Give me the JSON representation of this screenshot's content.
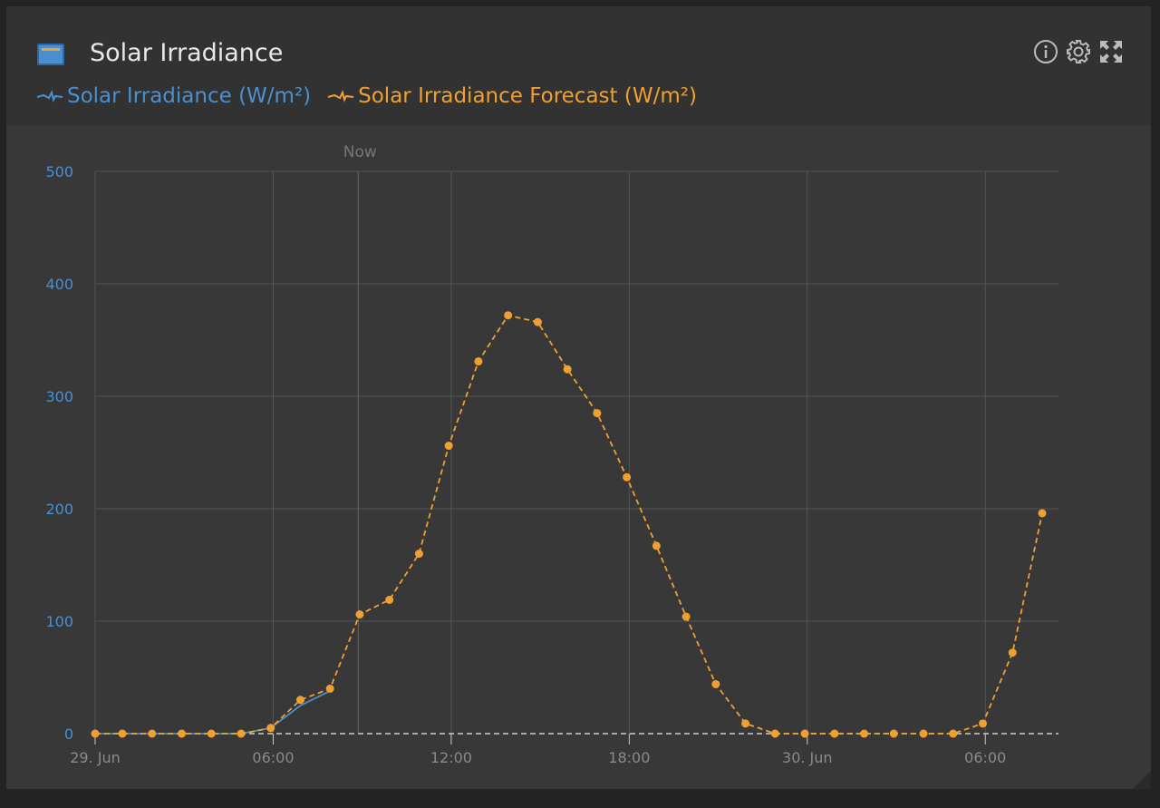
{
  "header": {
    "title": "Solar Irradiance",
    "icon": "solar-panel-icon",
    "tools": [
      "info-icon",
      "gear-icon",
      "expand-icon"
    ]
  },
  "legend": [
    {
      "label": "Solar Irradiance (W/m²)",
      "color": "#4a90d0"
    },
    {
      "label": "Solar Irradiance Forecast (W/m²)",
      "color": "#f0a030"
    }
  ],
  "chart_data": {
    "type": "line",
    "title": "",
    "ylim": [
      0,
      500
    ],
    "yticks": [
      "0",
      "100",
      "200",
      "300",
      "400",
      "500"
    ],
    "xrange": [
      "29 Jun 00:00",
      "30 Jun 08:28"
    ],
    "xticks": [
      {
        "t": "29 Jun 00:00",
        "label": "29. Jun"
      },
      {
        "t": "29 Jun 06:00",
        "label": "06:00"
      },
      {
        "t": "29 Jun 12:00",
        "label": "12:00"
      },
      {
        "t": "29 Jun 18:00",
        "label": "18:00"
      },
      {
        "t": "30 Jun 00:00",
        "label": "30. Jun"
      },
      {
        "t": "30 Jun 06:00",
        "label": "06:00"
      }
    ],
    "now": {
      "t": "29 Jun 08:52",
      "label": "Now"
    },
    "grid": true,
    "legend_placement": "top-left",
    "series": [
      {
        "name": "Solar Irradiance (W/m²)",
        "color": "#4a90d0",
        "style": "solid",
        "x": [
          "29 Jun 00:00",
          "29 Jun 00:55",
          "29 Jun 01:55",
          "29 Jun 02:55",
          "29 Jun 03:55",
          "29 Jun 04:55",
          "29 Jun 05:55",
          "29 Jun 06:55",
          "29 Jun 07:55"
        ],
        "values": [
          0,
          0,
          0,
          0,
          0,
          0,
          5,
          25,
          38
        ]
      },
      {
        "name": "Solar Irradiance Forecast (W/m²)",
        "color": "#f0a030",
        "style": "dashed",
        "markers": true,
        "x": [
          "29 Jun 00:00",
          "29 Jun 00:55",
          "29 Jun 01:55",
          "29 Jun 02:55",
          "29 Jun 03:55",
          "29 Jun 04:55",
          "29 Jun 05:55",
          "29 Jun 06:55",
          "29 Jun 07:55",
          "29 Jun 08:55",
          "29 Jun 09:55",
          "29 Jun 10:55",
          "29 Jun 11:55",
          "29 Jun 12:55",
          "29 Jun 13:55",
          "29 Jun 14:55",
          "29 Jun 15:55",
          "29 Jun 16:55",
          "29 Jun 17:55",
          "29 Jun 18:55",
          "29 Jun 19:55",
          "29 Jun 20:55",
          "29 Jun 21:55",
          "29 Jun 22:55",
          "29 Jun 23:55",
          "30 Jun 00:55",
          "30 Jun 01:55",
          "30 Jun 02:55",
          "30 Jun 03:55",
          "30 Jun 04:55",
          "30 Jun 05:55",
          "30 Jun 06:55",
          "30 Jun 07:55"
        ],
        "values": [
          0,
          0,
          0,
          0,
          0,
          0,
          5,
          30,
          40,
          106,
          119,
          160,
          256,
          331,
          372,
          366,
          324,
          285,
          228,
          167,
          104,
          44,
          9,
          0,
          0,
          0,
          0,
          0,
          0,
          0,
          9,
          72,
          196
        ]
      }
    ]
  }
}
